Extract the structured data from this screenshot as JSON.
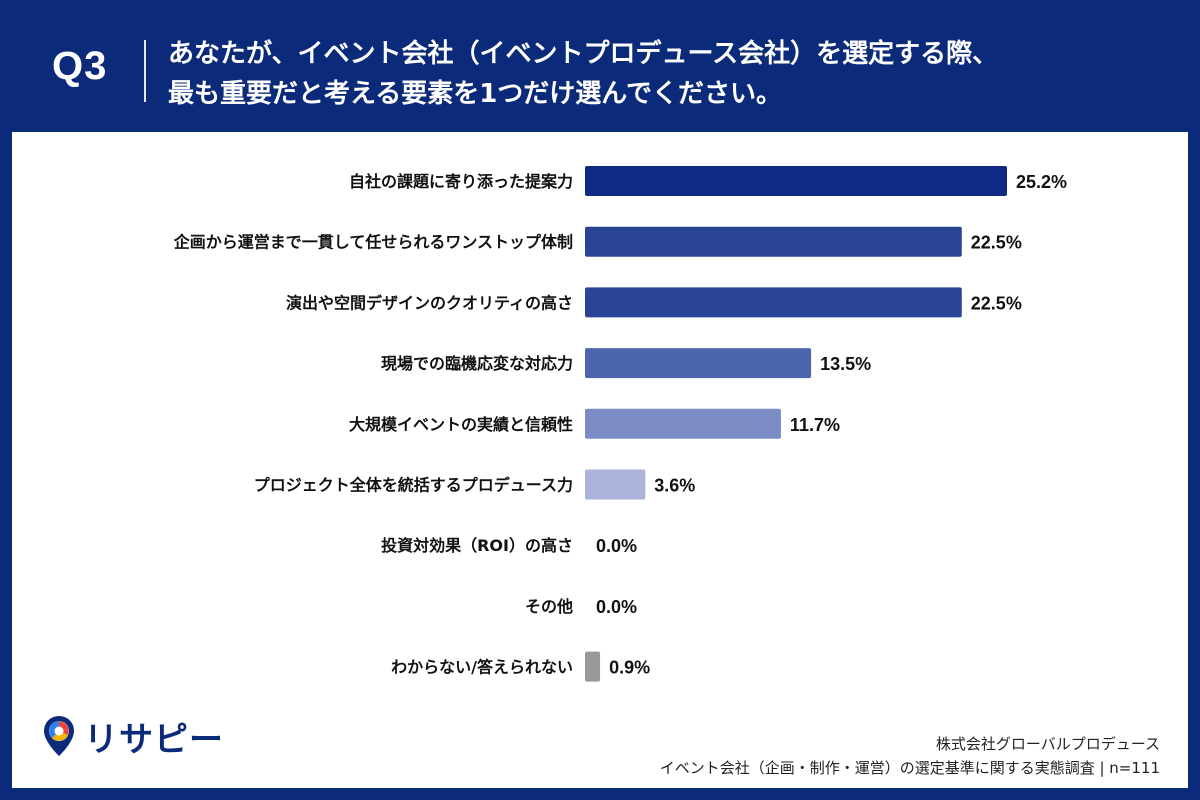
{
  "header": {
    "question_label": "Q3",
    "question_line1": "あなたが、イベント会社（イベントプロデュース会社）を選定する際、",
    "question_line2": "最も重要だと考える要素を1つだけ選んでください。"
  },
  "chart_data": {
    "type": "bar",
    "orientation": "horizontal",
    "categories": [
      "自社の課題に寄り添った提案力",
      "企画から運営まで一貫して任せられるワンストップ体制",
      "演出や空間デザインのクオリティの高さ",
      "現場での臨機応変な対応力",
      "大規模イベントの実績と信頼性",
      "プロジェクト全体を統括するプロデュース力",
      "投資対効果（ROI）の高さ",
      "その他",
      "わからない/答えられない"
    ],
    "values": [
      25.2,
      22.5,
      22.5,
      13.5,
      11.7,
      3.6,
      0.0,
      0.0,
      0.9
    ],
    "value_labels": [
      "25.2%",
      "22.5%",
      "22.5%",
      "13.5%",
      "11.7%",
      "3.6%",
      "0.0%",
      "0.0%",
      "0.9%"
    ],
    "colors": [
      "#0e2a84",
      "#2a4596",
      "#2a4596",
      "#4d65ae",
      "#7b8cc4",
      "#a9b3dc",
      "#a9b3dc",
      "#a9b3dc",
      "#999999"
    ],
    "xlim": [
      0,
      25.2
    ],
    "grid": false,
    "legend": "none"
  },
  "logo": {
    "text": "リサピー"
  },
  "footer": {
    "company": "株式会社グローバルプロデュース",
    "survey": "イベント会社（企画・制作・運営）の選定基準に関する実態調査 | n=111"
  }
}
